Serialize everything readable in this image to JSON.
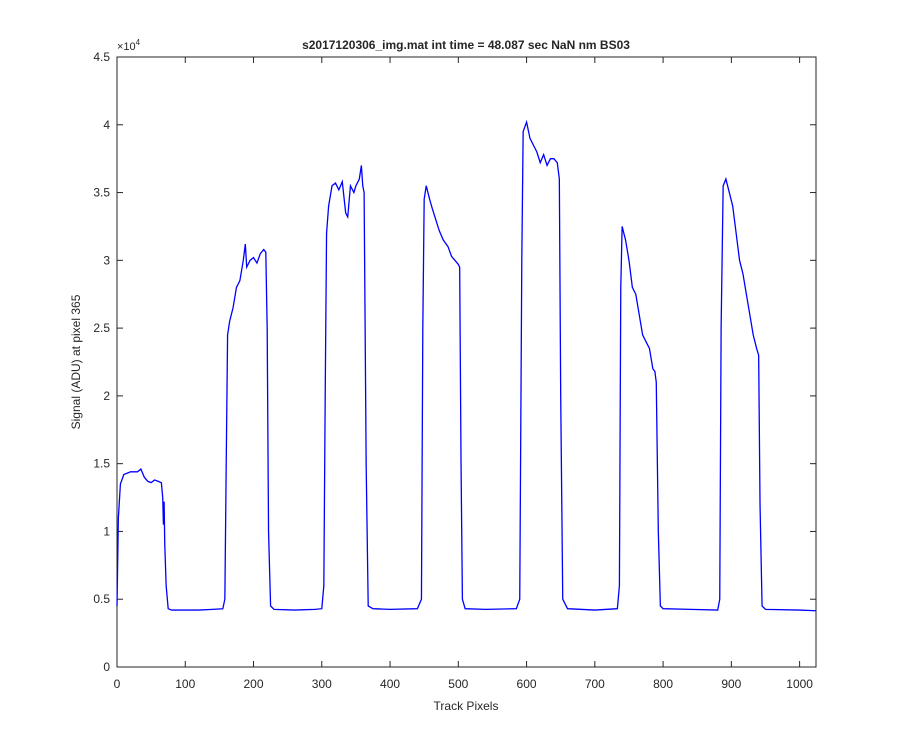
{
  "chart_data": {
    "type": "line",
    "title": "s2017120306_img.mat int time = 48.087 sec  NaN nm BS03",
    "x_label": "Track Pixels",
    "y_label": "Signal (ADU) at pixel 365",
    "y_scale": {
      "base": "×10",
      "exponent": "4"
    },
    "xlim": [
      0,
      1024
    ],
    "ylim": [
      0,
      4.5
    ],
    "xticks": [
      0,
      100,
      200,
      300,
      400,
      500,
      600,
      700,
      800,
      900,
      1000
    ],
    "yticks": [
      0,
      0.5,
      1,
      1.5,
      2,
      2.5,
      3,
      3.5,
      4,
      4.5
    ],
    "grid": false,
    "x": [
      0,
      2,
      5,
      10,
      20,
      30,
      35,
      40,
      45,
      50,
      55,
      60,
      65,
      67,
      68,
      69,
      70,
      72,
      75,
      80,
      100,
      120,
      140,
      155,
      158,
      160,
      162,
      165,
      170,
      175,
      180,
      185,
      188,
      190,
      195,
      200,
      205,
      210,
      215,
      218,
      220,
      222,
      225,
      230,
      260,
      290,
      300,
      303,
      305,
      307,
      310,
      315,
      320,
      325,
      330,
      335,
      338,
      342,
      347,
      350,
      355,
      358,
      360,
      362,
      365,
      368,
      375,
      400,
      440,
      446,
      448,
      450,
      453,
      458,
      462,
      467,
      472,
      478,
      485,
      490,
      495,
      500,
      502,
      504,
      506,
      510,
      540,
      585,
      590,
      593,
      595,
      600,
      605,
      610,
      615,
      620,
      625,
      630,
      635,
      640,
      645,
      648,
      650,
      653,
      660,
      700,
      733,
      736,
      738,
      740,
      745,
      750,
      755,
      760,
      765,
      770,
      775,
      780,
      785,
      788,
      790,
      793,
      796,
      800,
      840,
      880,
      883,
      885,
      888,
      892,
      897,
      902,
      907,
      912,
      917,
      922,
      927,
      932,
      937,
      940,
      942,
      945,
      950,
      1000,
      1024
    ],
    "series": [
      {
        "name": "signal",
        "color": "#0000ff",
        "values": [
          0.45,
          1.1,
          1.35,
          1.42,
          1.44,
          1.44,
          1.46,
          1.4,
          1.37,
          1.36,
          1.38,
          1.37,
          1.36,
          1.25,
          1.05,
          1.22,
          0.9,
          0.6,
          0.43,
          0.42,
          0.42,
          0.42,
          0.425,
          0.43,
          0.5,
          1.5,
          2.45,
          2.55,
          2.65,
          2.8,
          2.85,
          3.0,
          3.12,
          2.95,
          3.0,
          3.02,
          2.98,
          3.05,
          3.08,
          3.06,
          2.5,
          1.0,
          0.45,
          0.425,
          0.42,
          0.425,
          0.43,
          0.6,
          2.0,
          3.2,
          3.4,
          3.55,
          3.57,
          3.52,
          3.58,
          3.35,
          3.32,
          3.55,
          3.5,
          3.55,
          3.6,
          3.7,
          3.55,
          3.5,
          1.5,
          0.45,
          0.43,
          0.425,
          0.43,
          0.5,
          2.5,
          3.45,
          3.55,
          3.45,
          3.38,
          3.3,
          3.22,
          3.15,
          3.1,
          3.03,
          3.0,
          2.97,
          2.95,
          1.5,
          0.5,
          0.43,
          0.425,
          0.43,
          0.5,
          3.0,
          3.95,
          4.02,
          3.9,
          3.85,
          3.8,
          3.72,
          3.78,
          3.7,
          3.75,
          3.75,
          3.72,
          3.6,
          2.0,
          0.5,
          0.43,
          0.42,
          0.43,
          0.6,
          2.8,
          3.25,
          3.15,
          3.0,
          2.8,
          2.75,
          2.6,
          2.45,
          2.4,
          2.35,
          2.2,
          2.18,
          2.1,
          1.0,
          0.45,
          0.43,
          0.425,
          0.42,
          0.5,
          2.5,
          3.55,
          3.6,
          3.5,
          3.4,
          3.2,
          3.0,
          2.9,
          2.75,
          2.6,
          2.45,
          2.35,
          2.3,
          1.2,
          0.45,
          0.425,
          0.42,
          0.415
        ]
      }
    ]
  }
}
